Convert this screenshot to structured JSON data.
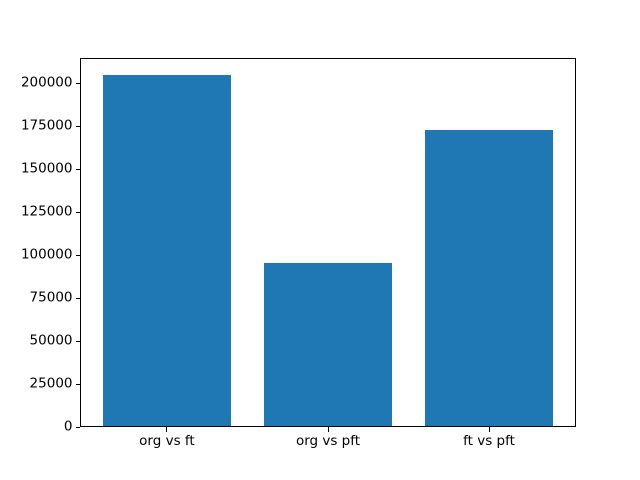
{
  "figure": {
    "background": "#ffffff"
  },
  "chart_data": {
    "type": "bar",
    "categories": [
      "org vs ft",
      "org vs pft",
      "ft vs pft"
    ],
    "values": [
      204800,
      95400,
      173000
    ],
    "title": "",
    "xlabel": "",
    "ylabel": "",
    "ylim": [
      0,
      215040
    ],
    "xlim": [
      -0.54,
      2.54
    ],
    "yticks": [
      0,
      25000,
      50000,
      75000,
      100000,
      125000,
      150000,
      175000,
      200000
    ],
    "bar_width_fraction": 0.8,
    "bar_color": "#1f77b4",
    "axis_color": "#000000",
    "tick_label_color": "#000000",
    "grid": false,
    "legend": "none"
  }
}
